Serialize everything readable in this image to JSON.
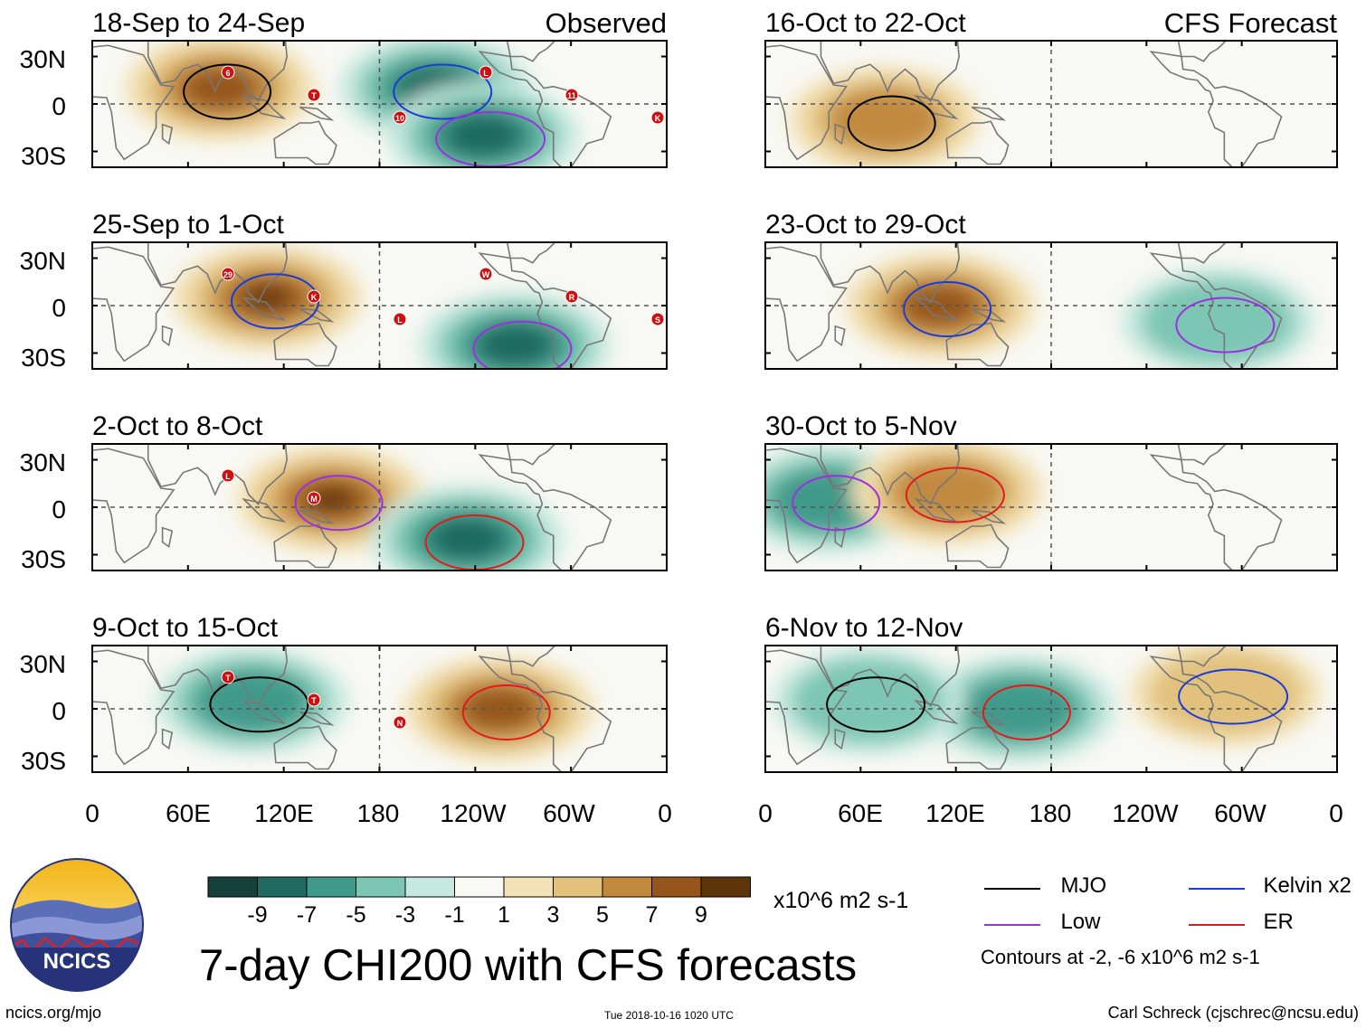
{
  "figure": {
    "title": "7-day CHI200 with CFS forecasts",
    "source_url": "ncics.org/mjo",
    "timestamp": "Tue 2018-10-16 1020 UTC",
    "author": "Carl Schreck (cjschrec@ncsu.edu)",
    "logo_text": "NCICS"
  },
  "columns": {
    "observed_label": "Observed",
    "forecast_label": "CFS Forecast"
  },
  "axes": {
    "lat_ticks": [
      "30N",
      "0",
      "30S"
    ],
    "lon_ticks": [
      "0",
      "60E",
      "120E",
      "180",
      "120W",
      "60W",
      "0"
    ]
  },
  "colorbar": {
    "units": "x10^6 m2 s-1",
    "tick_labels": [
      "-9",
      "-7",
      "-5",
      "-3",
      "-1",
      "1",
      "3",
      "5",
      "7",
      "9"
    ],
    "colors": [
      "#16413a",
      "#1f6b5f",
      "#3f9a8a",
      "#7dc6b4",
      "#c6e9df",
      "#f8f8f4",
      "#f3e2b6",
      "#e2c17d",
      "#c18a3f",
      "#96561b",
      "#5e3509"
    ]
  },
  "legend": {
    "items": [
      {
        "label": "MJO",
        "color": "#000000"
      },
      {
        "label": "Kelvin x2",
        "color": "#1a3bd6"
      },
      {
        "label": "Low",
        "color": "#9b30e0"
      },
      {
        "label": "ER",
        "color": "#e01b1b"
      }
    ],
    "note": "Contours at -2, -6 x10^6 m2 s-1"
  },
  "chart_data": [
    {
      "type": "heatmap",
      "title": "18-Sep to 24-Sep",
      "column": "Observed",
      "lon_range": [
        0,
        360
      ],
      "lat_range": [
        -40,
        40
      ],
      "storm_markers": [
        "6",
        "T",
        "10",
        "L",
        "11",
        "K"
      ],
      "anomalies": [
        {
          "label": "Asia/Maritime positive",
          "lon": 80,
          "lat": 10,
          "value": 7
        },
        {
          "label": "E Pacific negative",
          "lon": 215,
          "lat": 10,
          "value": -7
        },
        {
          "label": "S Pacific negative",
          "lon": 245,
          "lat": -20,
          "value": -7
        }
      ]
    },
    {
      "type": "heatmap",
      "title": "25-Sep to 1-Oct",
      "column": "Observed",
      "lon_range": [
        0,
        360
      ],
      "lat_range": [
        -40,
        40
      ],
      "storm_markers": [
        "29",
        "K",
        "L",
        "W",
        "R",
        "S"
      ],
      "anomalies": [
        {
          "label": "Maritime positive",
          "lon": 110,
          "lat": 5,
          "value": 9
        },
        {
          "label": "SE Pacific negative",
          "lon": 265,
          "lat": -25,
          "value": -7
        }
      ]
    },
    {
      "type": "heatmap",
      "title": "2-Oct to 8-Oct",
      "column": "Observed",
      "lon_range": [
        0,
        360
      ],
      "lat_range": [
        -40,
        40
      ],
      "storm_markers": [
        "L",
        "M"
      ],
      "anomalies": [
        {
          "label": "W Pacific positive",
          "lon": 150,
          "lat": 5,
          "value": 9
        },
        {
          "label": "E Pacific negative",
          "lon": 235,
          "lat": -20,
          "value": -7
        }
      ]
    },
    {
      "type": "heatmap",
      "title": "9-Oct to 15-Oct",
      "column": "Observed",
      "lon_range": [
        0,
        360
      ],
      "lat_range": [
        -40,
        40
      ],
      "storm_markers": [
        "T",
        "T",
        "N"
      ],
      "anomalies": [
        {
          "label": "E Pacific positive",
          "lon": 255,
          "lat": 0,
          "value": 7
        },
        {
          "label": "Indian Ocean negative",
          "lon": 100,
          "lat": 5,
          "value": -5
        }
      ]
    },
    {
      "type": "heatmap",
      "title": "16-Oct to 22-Oct",
      "column": "CFS Forecast",
      "lon_range": [
        0,
        360
      ],
      "lat_range": [
        -40,
        40
      ],
      "anomalies": [
        {
          "label": "Indian Ocean positive",
          "lon": 75,
          "lat": -10,
          "value": 5
        }
      ]
    },
    {
      "type": "heatmap",
      "title": "23-Oct to 29-Oct",
      "column": "CFS Forecast",
      "lon_range": [
        0,
        360
      ],
      "lat_range": [
        -40,
        40
      ],
      "anomalies": [
        {
          "label": "Maritime positive",
          "lon": 110,
          "lat": 0,
          "value": 7
        },
        {
          "label": "Americas negative",
          "lon": 285,
          "lat": -10,
          "value": -3
        }
      ]
    },
    {
      "type": "heatmap",
      "title": "30-Oct to 5-Nov",
      "column": "CFS Forecast",
      "lon_range": [
        0,
        360
      ],
      "lat_range": [
        -40,
        40
      ],
      "anomalies": [
        {
          "label": "Indian Ocean negative",
          "lon": 40,
          "lat": 5,
          "value": -5
        },
        {
          "label": "Maritime positive",
          "lon": 115,
          "lat": 10,
          "value": 5
        }
      ]
    },
    {
      "type": "heatmap",
      "title": "6-Nov to 12-Nov",
      "column": "CFS Forecast",
      "lon_range": [
        0,
        360
      ],
      "lat_range": [
        -40,
        40
      ],
      "anomalies": [
        {
          "label": "W Pacific negative",
          "lon": 160,
          "lat": 0,
          "value": -5
        },
        {
          "label": "Indian Ocean negative",
          "lon": 65,
          "lat": 5,
          "value": -3
        },
        {
          "label": "Americas positive",
          "lon": 290,
          "lat": 10,
          "value": 3
        }
      ]
    }
  ]
}
